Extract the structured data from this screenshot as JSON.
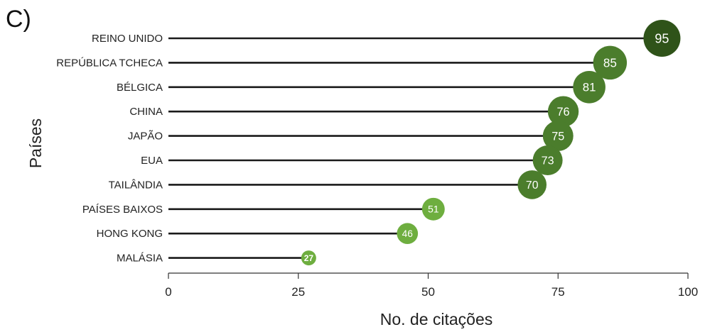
{
  "panel_label": "C)",
  "chart_data": {
    "type": "lollipop",
    "categories": [
      "REINO UNIDO",
      "REPÚBLICA TCHECA",
      "BÉLGICA",
      "CHINA",
      "JAPÃO",
      "EUA",
      "TAILÂNDIA",
      "PAÍSES BAIXOS",
      "HONG KONG",
      "MALÁSIA"
    ],
    "values": [
      95,
      85,
      81,
      76,
      75,
      73,
      70,
      51,
      46,
      27
    ],
    "data_labels": [
      "95",
      "85",
      "81",
      "76",
      "75",
      "73",
      "70",
      "51",
      "46",
      "27"
    ],
    "xlabel": "No. de citações",
    "ylabel": "Países",
    "xlim": [
      0,
      100
    ],
    "xticks": [
      0,
      25,
      50,
      75,
      100
    ],
    "xtick_labels": [
      "0",
      "25",
      "50",
      "75",
      "100"
    ],
    "grid": false,
    "colors": {
      "stem": "#1a1a1a",
      "marker_dark": "#2f5319",
      "marker_mid": "#4b7d2c",
      "marker_light": "#6eae3f"
    }
  }
}
